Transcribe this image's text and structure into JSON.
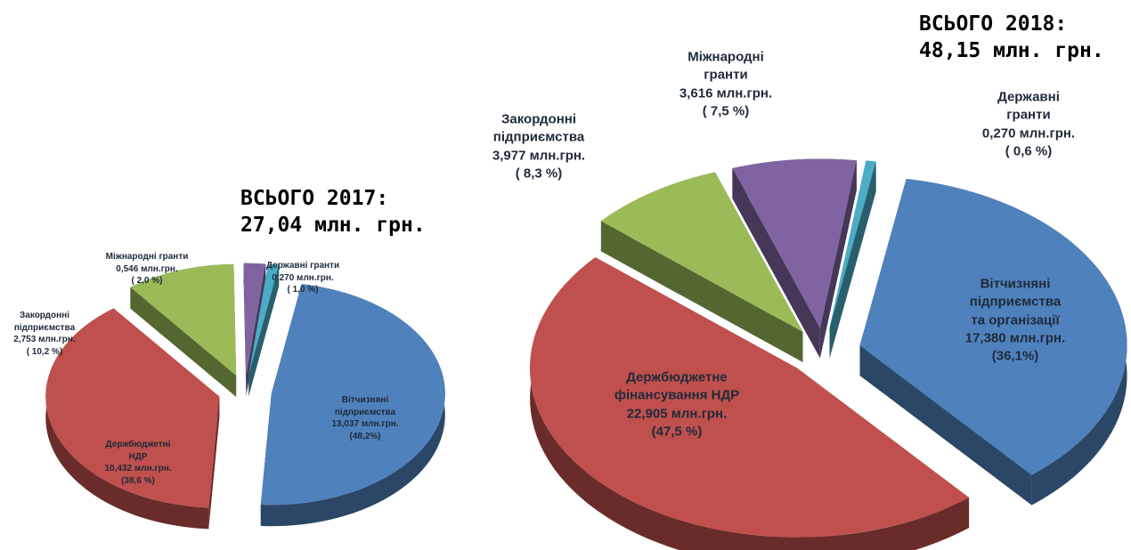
{
  "chart_data": [
    {
      "type": "pie",
      "title": "ВСЬОГО 2017:",
      "subtitle": "27,04 млн. грн.",
      "categories": [
        "Вітчизняні\nпідприємства",
        "Держбюджетні\nНДР",
        "Закордонні\nпідприємства",
        "Міжнародні гранти",
        "Державні гранти"
      ],
      "amounts": [
        "13,037 млн.грн.",
        "10,432 млн.грн.",
        "2,753 млн.грн.",
        "0,546 млн.грн.",
        "0,270 млн.грн."
      ],
      "values": [
        48.2,
        38.6,
        10.2,
        2.0,
        1.0
      ],
      "value_labels": [
        "(48,2%)",
        "(38,6 %)",
        "( 10,2 %)",
        "( 2,0 %)",
        "( 1,0 %)"
      ],
      "colors": [
        "#4f81bd",
        "#c0504d",
        "#9bbb59",
        "#8064a2",
        "#4bacc6"
      ]
    },
    {
      "type": "pie",
      "title": "ВСЬОГО 2018:",
      "subtitle": "48,15 млн. грн.",
      "categories": [
        "Вітчизняні\nпідприємства\nта організації",
        "Держбюджетне\nфінансування НДР",
        "Закордонні\nпідприємства",
        "Міжнародні\nгранти",
        "Державні гранти"
      ],
      "amounts": [
        "17,380 млн.грн.",
        "22,905 млн.грн.",
        "3,977 млн.грн.",
        "3,616 млн.грн.",
        "0,270 млн.грн."
      ],
      "values": [
        36.1,
        47.5,
        8.3,
        7.5,
        0.6
      ],
      "value_labels": [
        "(36,1%)",
        "(47,5 %)",
        "( 8,3 %)",
        "( 7,5 %)",
        "( 0,6 %)"
      ],
      "colors": [
        "#4f81bd",
        "#c0504d",
        "#9bbb59",
        "#8064a2",
        "#4bacc6"
      ]
    }
  ]
}
